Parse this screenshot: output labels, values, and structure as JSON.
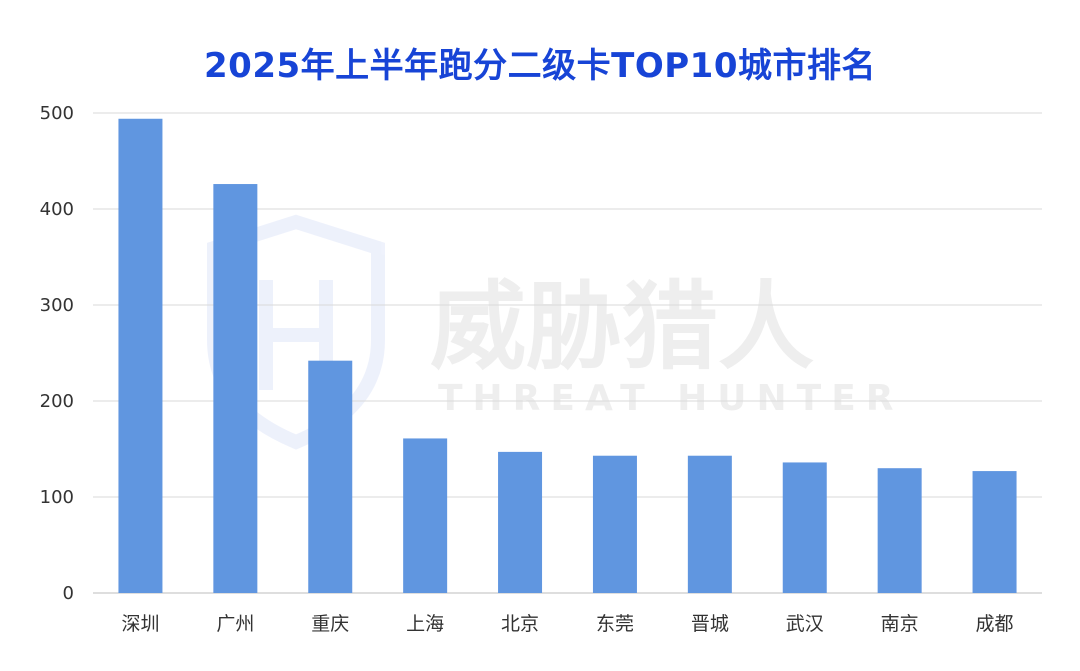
{
  "chart_data": {
    "type": "bar",
    "title": "2025年上半年跑分二级卡TOP10城市排名",
    "xlabel": "",
    "ylabel": "",
    "categories": [
      "深圳",
      "广州",
      "重庆",
      "上海",
      "北京",
      "东莞",
      "晋城",
      "武汉",
      "南京",
      "成都"
    ],
    "values": [
      494,
      426,
      242,
      161,
      147,
      143,
      143,
      136,
      130,
      127
    ],
    "ylim": [
      0,
      500
    ],
    "yticks": [
      0,
      100,
      200,
      300,
      400,
      500
    ],
    "grid": true,
    "bar_color": "#6096e0",
    "title_color": "#1744d6"
  },
  "watermark": {
    "main": "威胁猎人",
    "sub": "THREAT HUNTER"
  }
}
